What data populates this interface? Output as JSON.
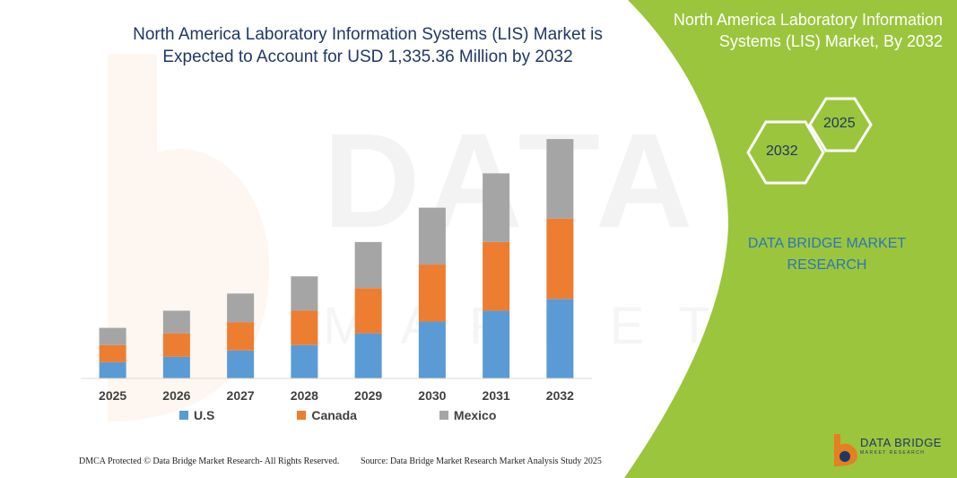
{
  "title": "North America Laboratory Information Systems (LIS) Market is Expected to Account for USD 1,335.36 Million by 2032",
  "watermark": {
    "line1": "DATA BRIDGE",
    "line2": "MARKET RESEARCH"
  },
  "panel": {
    "title": "North America Laboratory Information Systems (LIS) Market, By 2032",
    "hex_front": "2032",
    "hex_back": "2025",
    "brand": "DATA BRIDGE MARKET RESEARCH",
    "accent_color": "#9bc53d"
  },
  "footer": {
    "left": "DMCA Protected © Data Bridge Market Research- All Rights Reserved.",
    "right": "Source: Data Bridge Market Research Market Analysis Study 2025"
  },
  "logo": {
    "name": "DATA BRIDGE",
    "tagline": "MARKET RESEARCH"
  },
  "chart_data": {
    "type": "bar",
    "stacked": true,
    "categories": [
      "2025",
      "2026",
      "2027",
      "2028",
      "2029",
      "2030",
      "2031",
      "2032"
    ],
    "series": [
      {
        "name": "U.S",
        "color": "#5b9bd5",
        "values": [
          18,
          24,
          31,
          37,
          50,
          63,
          75,
          88
        ]
      },
      {
        "name": "Canada",
        "color": "#ed7d31",
        "values": [
          19,
          26,
          31,
          38,
          50,
          63,
          76,
          89
        ]
      },
      {
        "name": "Mexico",
        "color": "#a5a5a5",
        "values": [
          19,
          25,
          32,
          38,
          51,
          63,
          76,
          88
        ]
      }
    ],
    "ylim": [
      0,
      270
    ],
    "legend": "bottom",
    "grid": false
  }
}
